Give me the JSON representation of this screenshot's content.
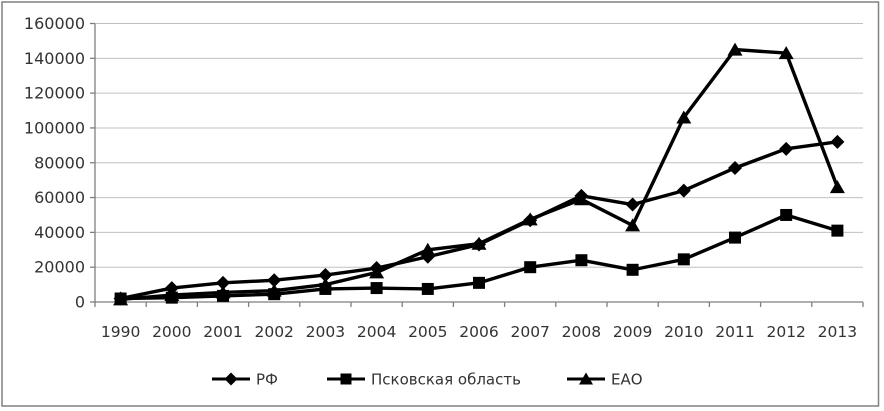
{
  "chart_data": {
    "type": "line",
    "title": "",
    "xlabel": "",
    "ylabel": "",
    "categories": [
      "1990",
      "2000",
      "2001",
      "2002",
      "2003",
      "2004",
      "2005",
      "2006",
      "2007",
      "2008",
      "2009",
      "2010",
      "2011",
      "2012",
      "2013"
    ],
    "series": [
      {
        "name": "РФ",
        "marker": "diamond",
        "color": "#000000",
        "values": [
          2000,
          8000,
          11000,
          12500,
          15500,
          19500,
          26000,
          33000,
          47000,
          61000,
          56000,
          64000,
          77000,
          88000,
          92000
        ]
      },
      {
        "name": "Псковская область",
        "marker": "square",
        "color": "#000000",
        "values": [
          2000,
          2500,
          3500,
          4500,
          7500,
          8000,
          7500,
          11000,
          20000,
          24000,
          18500,
          24500,
          37000,
          50000,
          41000
        ]
      },
      {
        "name": "ЕАО",
        "marker": "triangle",
        "color": "#000000",
        "values": [
          1500,
          4000,
          5500,
          6500,
          10000,
          17000,
          30000,
          33500,
          47500,
          59000,
          44000,
          106000,
          145000,
          143000,
          66000
        ]
      }
    ],
    "ylim": [
      0,
      160000
    ],
    "ytick_step": 20000,
    "ytick_labels": [
      "0",
      "20000",
      "40000",
      "60000",
      "80000",
      "100000",
      "120000",
      "140000",
      "160000"
    ],
    "grid": true,
    "legend_position": "bottom",
    "colors": {
      "line": "#000000",
      "grid": "#c0c0c0",
      "axis": "#7f7f7f",
      "text": "#333333",
      "frame_border": "#808080",
      "background": "#ffffff"
    }
  }
}
